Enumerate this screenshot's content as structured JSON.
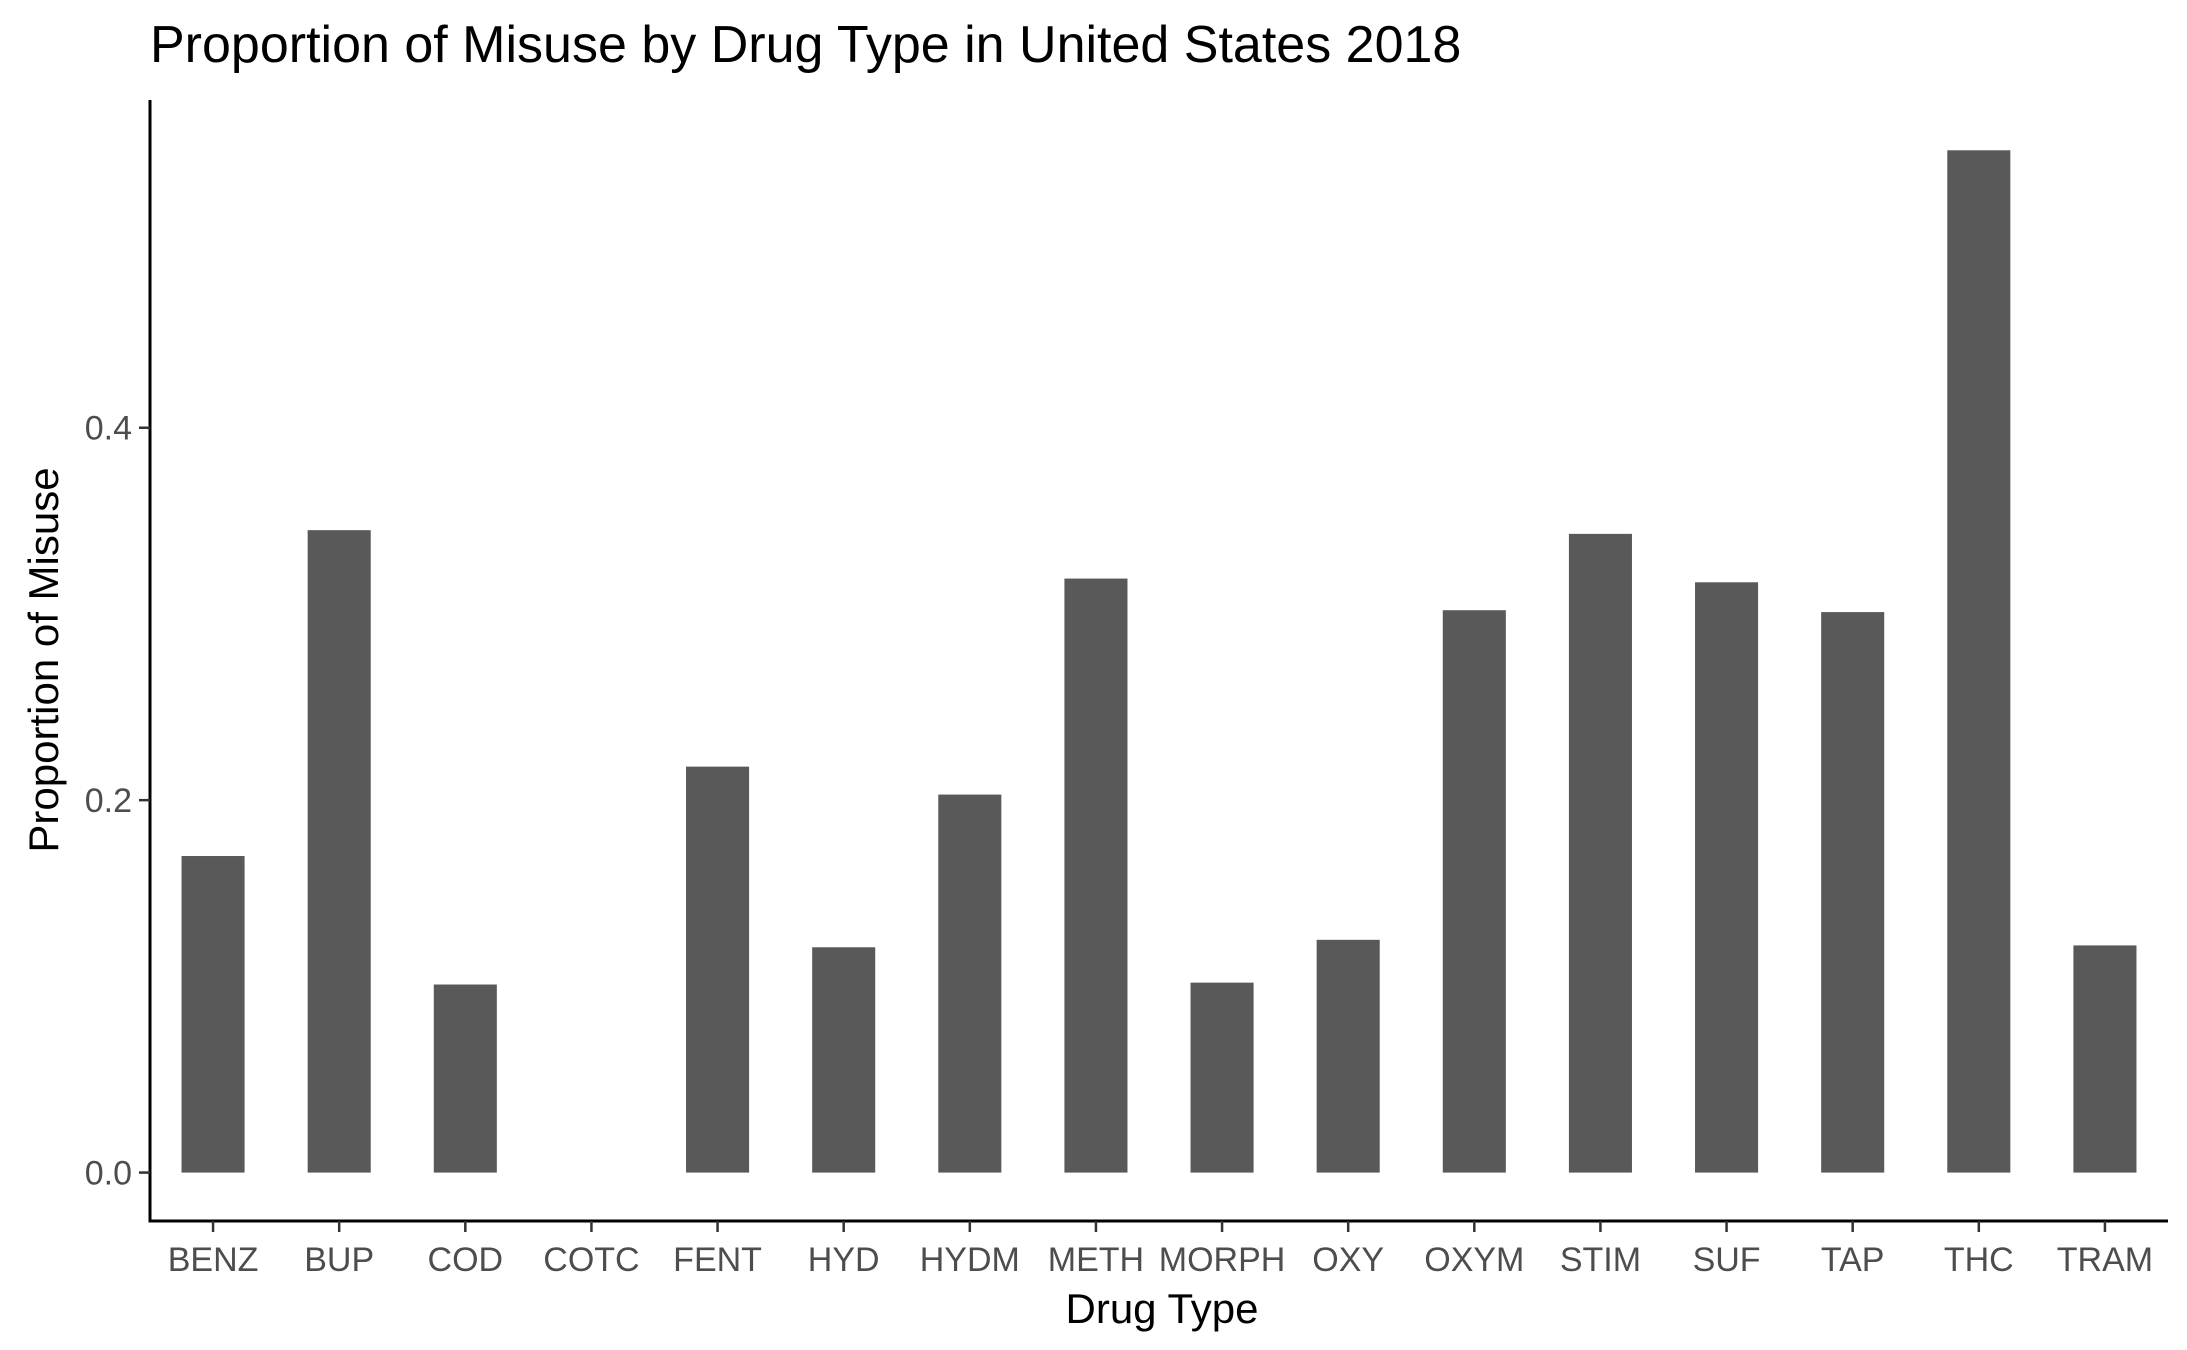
{
  "chart_data": {
    "type": "bar",
    "title": "Proportion of Misuse by Drug Type in United States 2018",
    "xlabel": "Drug Type",
    "ylabel": "Proportion of Misuse",
    "categories": [
      "BENZ",
      "BUP",
      "COD",
      "COTC",
      "FENT",
      "HYD",
      "HYDM",
      "METH",
      "MORPH",
      "OXY",
      "OXYM",
      "STIM",
      "SUF",
      "TAP",
      "THC",
      "TRAM"
    ],
    "values": [
      0.17,
      0.345,
      0.101,
      0.0,
      0.218,
      0.121,
      0.203,
      0.319,
      0.102,
      0.125,
      0.302,
      0.343,
      0.317,
      0.301,
      0.549,
      0.122
    ],
    "yticks": [
      0.0,
      0.2,
      0.4
    ],
    "ytick_labels": [
      "0.0",
      "0.2",
      "0.4"
    ],
    "ylim": [
      -0.026,
      0.576
    ],
    "grid": false,
    "legend": "none",
    "bar_color": "#595959"
  }
}
